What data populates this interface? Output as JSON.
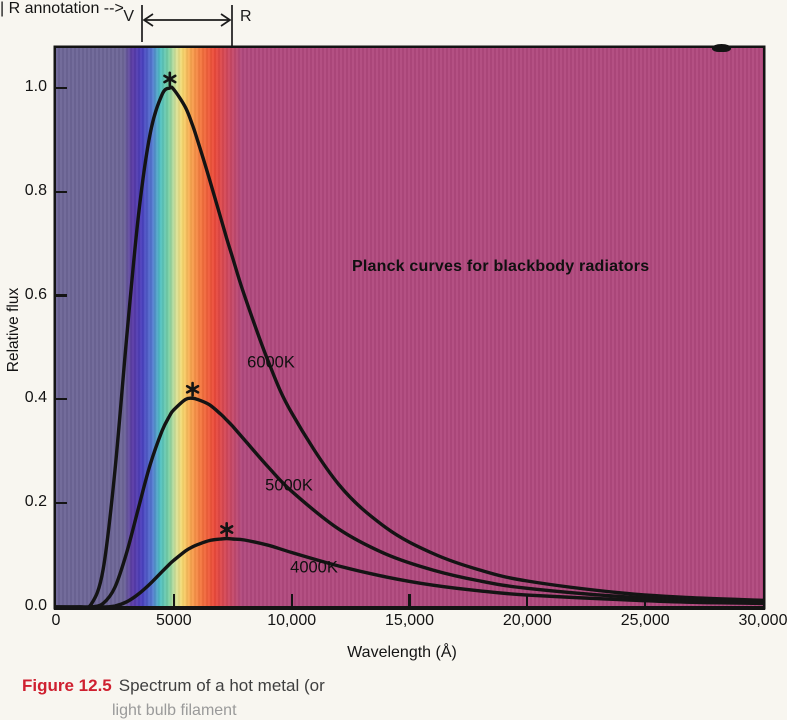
{
  "colors": {
    "page_background": "#f8f6f0",
    "plot_magenta": "#b1497e",
    "plot_slate": "#6d6697",
    "curve": "#141414",
    "caption_label_red": "#cf2030",
    "caption_text_gray": "#3f3f3f",
    "spectrum_stops": [
      [
        0,
        "#6d6697"
      ],
      [
        9.6,
        "#6d6697"
      ],
      [
        10.8,
        "#5a3aa5"
      ],
      [
        12.2,
        "#4a40bf"
      ],
      [
        13.6,
        "#5579d1"
      ],
      [
        14.7,
        "#4fc0c4"
      ],
      [
        15.9,
        "#79d0a4"
      ],
      [
        17.0,
        "#d9e298"
      ],
      [
        17.9,
        "#f8d96f"
      ],
      [
        19.0,
        "#f9a850"
      ],
      [
        20.7,
        "#f4713d"
      ],
      [
        22.4,
        "#ec4a3a"
      ],
      [
        24.3,
        "#d0485e"
      ],
      [
        26.3,
        "#b1497e"
      ],
      [
        100,
        "#b1497e"
      ]
    ]
  },
  "visible_band_annotation": {
    "left_label": "V",
    "right_label": "R"
  },
  "chart_data": {
    "type": "line",
    "title": "Planck curves for blackbody radiators",
    "xlabel": "Wavelength (Å)",
    "ylabel": "Relative flux",
    "xlim": [
      0,
      30000
    ],
    "ylim": [
      0,
      1.077
    ],
    "grid": false,
    "legend_position": "labels-on-curves",
    "peak_marker": "*",
    "xticks": {
      "values": [
        0,
        5000,
        10000,
        15000,
        20000,
        25000,
        30000
      ],
      "labels": [
        "0",
        "5000",
        "10,000",
        "15,000",
        "20,000",
        "25,000",
        "30,000"
      ]
    },
    "yticks": {
      "values": [
        0,
        0.2,
        0.4,
        0.6,
        0.8,
        1.0
      ],
      "labels": [
        "0.0",
        "0.2",
        "0.4",
        "0.6",
        "0.8",
        "1.0"
      ]
    },
    "x": [
      0,
      1000,
      1500,
      2000,
      2500,
      3000,
      3500,
      4000,
      4500,
      4830,
      5000,
      5500,
      5796,
      6000,
      6500,
      7000,
      7245,
      7500,
      8000,
      9000,
      10000,
      12000,
      14000,
      16000,
      18000,
      20000,
      24000,
      27000,
      30000
    ],
    "series": [
      {
        "name": "6000K",
        "temperature_k": 6000,
        "peak": {
          "x": 4830,
          "y": 1.0
        },
        "values": [
          0,
          0,
          0.006,
          0.072,
          0.262,
          0.52,
          0.755,
          0.913,
          0.987,
          1.0,
          0.997,
          0.962,
          0.928,
          0.9,
          0.826,
          0.748,
          0.71,
          0.672,
          0.6,
          0.474,
          0.374,
          0.236,
          0.153,
          0.103,
          0.071,
          0.05,
          0.027,
          0.018,
          0.013
        ]
      },
      {
        "name": "5000K",
        "temperature_k": 5000,
        "peak": {
          "x": 5796,
          "y": 0.402
        },
        "values": [
          0,
          0,
          0,
          0.007,
          0.038,
          0.105,
          0.191,
          0.275,
          0.339,
          0.369,
          0.38,
          0.4,
          0.402,
          0.4,
          0.39,
          0.371,
          0.36,
          0.348,
          0.322,
          0.27,
          0.223,
          0.15,
          0.102,
          0.071,
          0.05,
          0.036,
          0.02,
          0.014,
          0.01
        ]
      },
      {
        "name": "4000K",
        "temperature_k": 4000,
        "peak": {
          "x": 7245,
          "y": 0.132
        },
        "values": [
          0,
          0,
          0,
          0,
          0.002,
          0.01,
          0.025,
          0.045,
          0.068,
          0.083,
          0.09,
          0.108,
          0.116,
          0.12,
          0.128,
          0.131,
          0.132,
          0.131,
          0.129,
          0.119,
          0.105,
          0.079,
          0.058,
          0.042,
          0.031,
          0.023,
          0.014,
          0.009,
          0.007
        ]
      }
    ]
  },
  "caption": {
    "label": "Figure 12.5",
    "text": "Spectrum of a hot metal (or",
    "partial_second_line": "light bulb filament"
  }
}
